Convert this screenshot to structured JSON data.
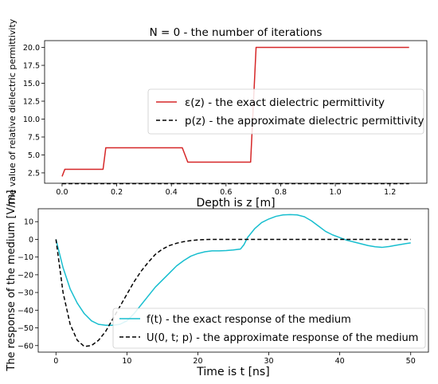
{
  "chart_data": [
    {
      "type": "line",
      "title": "N = 0 - the number of iterations",
      "xlabel": "Depth is z [m]",
      "ylabel": "The value of relative dielectric permittivity",
      "xlim": [
        -0.064,
        1.335
      ],
      "ylim": [
        1.05,
        20.95
      ],
      "xticks": [
        0.0,
        0.2,
        0.4,
        0.6,
        0.8,
        1.0,
        1.2
      ],
      "xtick_labels": [
        "0.0",
        "0.2",
        "0.4",
        "0.6",
        "0.8",
        "1.0",
        "1.2"
      ],
      "yticks": [
        2.5,
        5.0,
        7.5,
        10.0,
        12.5,
        15.0,
        17.5,
        20.0
      ],
      "ytick_labels": [
        "2.5",
        "5.0",
        "7.5",
        "10.0",
        "12.5",
        "15.0",
        "17.5",
        "20.0"
      ],
      "grid": false,
      "legend": {
        "position": "center-right",
        "entries": [
          {
            "label": "ε(z) - the exact dielectric permittivity",
            "series": 0
          },
          {
            "label": "p(z) - the approximate dielectric permittivity",
            "series": 1
          }
        ]
      },
      "series": [
        {
          "color": "#d62728",
          "dash": "solid",
          "x": [
            0.0,
            0.01,
            0.15,
            0.16,
            0.44,
            0.46,
            0.69,
            0.71,
            1.27
          ],
          "y": [
            2.0,
            3.0,
            3.0,
            6.0,
            6.0,
            4.0,
            4.0,
            20.0,
            20.0
          ]
        },
        {
          "color": "#000000",
          "dash": "dashed",
          "x": [
            0.0,
            1.27
          ],
          "y": [
            1.0,
            1.0
          ]
        }
      ]
    },
    {
      "type": "line",
      "title": "",
      "xlabel": "Time is t [ns]",
      "ylabel": "The response of the medium [V/m]",
      "xlim": [
        -2.5,
        52.5
      ],
      "ylim": [
        -63.7,
        17.3
      ],
      "xticks": [
        0,
        10,
        20,
        30,
        40,
        50
      ],
      "xtick_labels": [
        "0",
        "10",
        "20",
        "30",
        "40",
        "50"
      ],
      "yticks": [
        -60,
        -50,
        -40,
        -30,
        -20,
        -10,
        0,
        10
      ],
      "ytick_labels": [
        "−60",
        "−50",
        "−40",
        "−30",
        "−20",
        "−10",
        "0",
        "10"
      ],
      "grid": false,
      "legend": {
        "position": "lower-right",
        "entries": [
          {
            "label": "f(t) - the exact response of the medium",
            "series": 0
          },
          {
            "label": "U(0, t; p) - the approximate response of the medium",
            "series": 1
          }
        ]
      },
      "series": [
        {
          "color": "#17becf",
          "dash": "solid",
          "x": [
            0,
            1,
            2,
            3,
            4,
            5,
            6,
            7,
            8,
            9,
            10,
            11,
            12,
            13,
            14,
            15,
            16,
            17,
            18,
            19,
            20,
            21,
            22,
            23,
            24,
            25,
            26,
            26.5,
            27,
            28,
            29,
            30,
            31,
            32,
            33,
            34,
            35,
            36,
            37,
            38,
            39,
            40,
            41,
            42,
            43,
            44,
            45,
            46,
            47,
            48,
            49,
            50
          ],
          "y": [
            0,
            -16,
            -28,
            -36,
            -42,
            -46,
            -48,
            -48.5,
            -48.5,
            -48,
            -46,
            -42,
            -37,
            -32,
            -27,
            -23,
            -19,
            -15,
            -12,
            -9.5,
            -8,
            -7,
            -6.5,
            -6.5,
            -6.3,
            -6,
            -5.5,
            -3,
            1,
            6,
            9.5,
            11.5,
            13,
            13.8,
            14,
            13.8,
            12.8,
            10.5,
            7.5,
            4.5,
            2.5,
            1,
            -0.5,
            -1.5,
            -2.5,
            -3.5,
            -4.2,
            -4.5,
            -4,
            -3.3,
            -2.6,
            -2
          ]
        },
        {
          "color": "#000000",
          "dash": "dashed",
          "x": [
            0,
            1,
            2,
            3,
            4,
            5,
            6,
            7,
            8,
            9,
            10,
            11,
            12,
            13,
            14,
            15,
            16,
            17,
            18,
            19,
            20,
            21,
            22,
            24,
            26,
            30,
            35,
            40,
            45,
            50
          ],
          "y": [
            0,
            -30,
            -48,
            -57,
            -60.5,
            -60,
            -57,
            -52,
            -45,
            -38,
            -31,
            -24,
            -18,
            -13,
            -8.5,
            -5.5,
            -3.5,
            -2.2,
            -1.3,
            -0.7,
            -0.3,
            -0.1,
            0,
            0,
            0,
            0,
            0,
            0,
            0,
            0
          ]
        }
      ]
    }
  ]
}
